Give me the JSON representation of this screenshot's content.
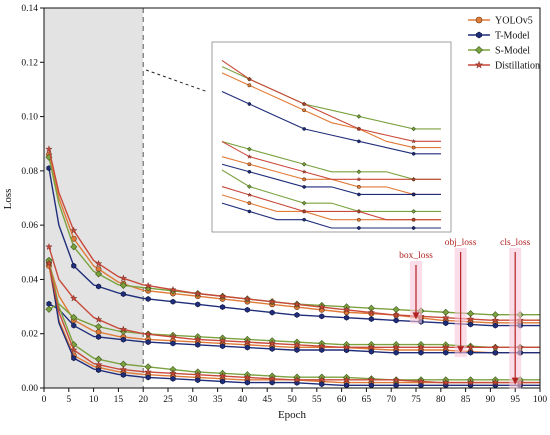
{
  "chart_data": {
    "type": "line",
    "xlabel": "Epoch",
    "ylabel": "Loss",
    "xlim": [
      0,
      100
    ],
    "ylim": [
      0,
      0.14
    ],
    "x_ticks": [
      "0",
      "5",
      "10",
      "15",
      "20",
      "25",
      "30",
      "35",
      "40",
      "45",
      "50",
      "55",
      "60",
      "65",
      "70",
      "75",
      "80",
      "85",
      "90",
      "95",
      "100"
    ],
    "y_ticks": [
      "0.00",
      "0.02",
      "0.04",
      "0.06",
      "0.08",
      "0.10",
      "0.12",
      "0.14"
    ],
    "grid": false,
    "legend_position": "top-right",
    "shaded_region": [
      0,
      20
    ],
    "series": [
      {
        "name": "YOLOv5",
        "color": "#e07b39",
        "marker": "circle"
      },
      {
        "name": "T-Model",
        "color": "#1f2d7a",
        "marker": "hexagon"
      },
      {
        "name": "S-Model",
        "color": "#7ba23f",
        "marker": "diamond"
      },
      {
        "name": "Distillation",
        "color": "#c9493a",
        "marker": "star"
      }
    ],
    "groups": [
      {
        "label": "box_loss",
        "arrow_x": 75,
        "values": {
          "YOLOv5": [
            [
              1,
              0.086
            ],
            [
              3,
              0.07
            ],
            [
              6,
              0.055
            ],
            [
              10,
              0.045
            ],
            [
              15,
              0.039
            ],
            [
              20,
              0.036
            ],
            [
              30,
              0.034
            ],
            [
              40,
              0.032
            ],
            [
              50,
              0.03
            ],
            [
              60,
              0.028
            ],
            [
              70,
              0.027
            ],
            [
              80,
              0.025
            ],
            [
              90,
              0.024
            ],
            [
              100,
              0.024
            ]
          ],
          "T-Model": [
            [
              1,
              0.081
            ],
            [
              3,
              0.06
            ],
            [
              6,
              0.045
            ],
            [
              10,
              0.038
            ],
            [
              15,
              0.035
            ],
            [
              20,
              0.033
            ],
            [
              30,
              0.031
            ],
            [
              40,
              0.029
            ],
            [
              50,
              0.027
            ],
            [
              60,
              0.026
            ],
            [
              70,
              0.025
            ],
            [
              80,
              0.024
            ],
            [
              90,
              0.023
            ],
            [
              100,
              0.023
            ]
          ],
          "S-Model": [
            [
              1,
              0.085
            ],
            [
              3,
              0.068
            ],
            [
              6,
              0.052
            ],
            [
              10,
              0.043
            ],
            [
              15,
              0.038
            ],
            [
              20,
              0.037
            ],
            [
              30,
              0.035
            ],
            [
              40,
              0.033
            ],
            [
              50,
              0.031
            ],
            [
              60,
              0.03
            ],
            [
              70,
              0.029
            ],
            [
              80,
              0.028
            ],
            [
              90,
              0.027
            ],
            [
              100,
              0.027
            ]
          ],
          "Distillation": [
            [
              1,
              0.088
            ],
            [
              3,
              0.072
            ],
            [
              6,
              0.058
            ],
            [
              10,
              0.047
            ],
            [
              15,
              0.041
            ],
            [
              20,
              0.038
            ],
            [
              30,
              0.035
            ],
            [
              40,
              0.033
            ],
            [
              50,
              0.031
            ],
            [
              60,
              0.029
            ],
            [
              70,
              0.027
            ],
            [
              80,
              0.026
            ],
            [
              90,
              0.025
            ],
            [
              100,
              0.025
            ]
          ]
        }
      },
      {
        "label": "obj_loss",
        "arrow_x": 84,
        "values": {
          "YOLOv5": [
            [
              1,
              0.046
            ],
            [
              3,
              0.034
            ],
            [
              6,
              0.025
            ],
            [
              10,
              0.021
            ],
            [
              15,
              0.019
            ],
            [
              20,
              0.018
            ],
            [
              30,
              0.017
            ],
            [
              40,
              0.016
            ],
            [
              50,
              0.015
            ],
            [
              60,
              0.015
            ],
            [
              70,
              0.014
            ],
            [
              80,
              0.014
            ],
            [
              90,
              0.013
            ],
            [
              100,
              0.013
            ]
          ],
          "T-Model": [
            [
              1,
              0.031
            ],
            [
              3,
              0.029
            ],
            [
              6,
              0.023
            ],
            [
              10,
              0.019
            ],
            [
              15,
              0.018
            ],
            [
              20,
              0.017
            ],
            [
              30,
              0.016
            ],
            [
              40,
              0.015
            ],
            [
              50,
              0.014
            ],
            [
              60,
              0.014
            ],
            [
              70,
              0.013
            ],
            [
              80,
              0.013
            ],
            [
              90,
              0.013
            ],
            [
              100,
              0.013
            ]
          ],
          "S-Model": [
            [
              1,
              0.029
            ],
            [
              3,
              0.031
            ],
            [
              6,
              0.026
            ],
            [
              10,
              0.023
            ],
            [
              15,
              0.021
            ],
            [
              20,
              0.02
            ],
            [
              30,
              0.019
            ],
            [
              40,
              0.018
            ],
            [
              50,
              0.017
            ],
            [
              60,
              0.016
            ],
            [
              70,
              0.016
            ],
            [
              80,
              0.016
            ],
            [
              90,
              0.015
            ],
            [
              100,
              0.015
            ]
          ],
          "Distillation": [
            [
              1,
              0.052
            ],
            [
              3,
              0.04
            ],
            [
              6,
              0.033
            ],
            [
              10,
              0.026
            ],
            [
              15,
              0.022
            ],
            [
              20,
              0.02
            ],
            [
              30,
              0.018
            ],
            [
              40,
              0.017
            ],
            [
              50,
              0.016
            ],
            [
              60,
              0.015
            ],
            [
              70,
              0.015
            ],
            [
              80,
              0.015
            ],
            [
              90,
              0.015
            ],
            [
              100,
              0.015
            ]
          ]
        }
      },
      {
        "label": "cls_loss",
        "arrow_x": 95,
        "values": {
          "YOLOv5": [
            [
              1,
              0.045
            ],
            [
              3,
              0.025
            ],
            [
              6,
              0.012
            ],
            [
              10,
              0.008
            ],
            [
              15,
              0.006
            ],
            [
              20,
              0.005
            ],
            [
              30,
              0.004
            ],
            [
              40,
              0.003
            ],
            [
              50,
              0.003
            ],
            [
              60,
              0.002
            ],
            [
              70,
              0.002
            ],
            [
              80,
              0.002
            ],
            [
              90,
              0.002
            ],
            [
              100,
              0.002
            ]
          ],
          "T-Model": [
            [
              1,
              0.047
            ],
            [
              3,
              0.024
            ],
            [
              6,
              0.011
            ],
            [
              10,
              0.007
            ],
            [
              15,
              0.005
            ],
            [
              20,
              0.004
            ],
            [
              30,
              0.003
            ],
            [
              40,
              0.002
            ],
            [
              50,
              0.002
            ],
            [
              60,
              0.001
            ],
            [
              70,
              0.001
            ],
            [
              80,
              0.001
            ],
            [
              90,
              0.001
            ],
            [
              100,
              0.001
            ]
          ],
          "S-Model": [
            [
              1,
              0.047
            ],
            [
              3,
              0.03
            ],
            [
              6,
              0.016
            ],
            [
              10,
              0.011
            ],
            [
              15,
              0.009
            ],
            [
              20,
              0.008
            ],
            [
              30,
              0.006
            ],
            [
              40,
              0.005
            ],
            [
              50,
              0.004
            ],
            [
              60,
              0.004
            ],
            [
              70,
              0.003
            ],
            [
              80,
              0.003
            ],
            [
              90,
              0.003
            ],
            [
              100,
              0.003
            ]
          ],
          "Distillation": [
            [
              1,
              0.046
            ],
            [
              3,
              0.028
            ],
            [
              6,
              0.014
            ],
            [
              10,
              0.009
            ],
            [
              15,
              0.007
            ],
            [
              20,
              0.006
            ],
            [
              30,
              0.005
            ],
            [
              40,
              0.004
            ],
            [
              50,
              0.003
            ],
            [
              60,
              0.003
            ],
            [
              70,
              0.003
            ],
            [
              80,
              0.002
            ],
            [
              90,
              0.002
            ],
            [
              100,
              0.002
            ]
          ]
        }
      }
    ],
    "inset": {
      "x_range": [
        20,
        100
      ],
      "note": "zoomed view of curves"
    }
  }
}
